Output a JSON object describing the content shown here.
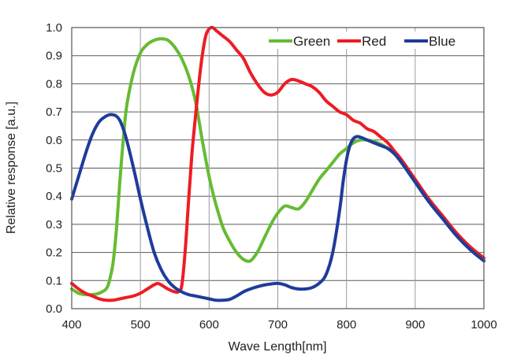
{
  "chart_data": {
    "type": "line",
    "title": "",
    "xlabel": "Wave Length[nm]",
    "ylabel": "Relative response [a.u.]",
    "xlim": [
      400,
      1000
    ],
    "ylim": [
      0,
      1.0
    ],
    "xticks": [
      "400",
      "500",
      "600",
      "700",
      "800",
      "900",
      "1000"
    ],
    "yticks": [
      "0.0",
      "0.1",
      "0.2",
      "0.3",
      "0.4",
      "0.5",
      "0.6",
      "0.7",
      "0.8",
      "0.9",
      "1.0"
    ],
    "grid": true,
    "legend_position": "top-right",
    "series": [
      {
        "name": "Green",
        "color": "#66bb33",
        "x": [
          400,
          410,
          420,
          430,
          440,
          450,
          455,
          460,
          465,
          470,
          475,
          480,
          490,
          500,
          510,
          520,
          530,
          540,
          550,
          560,
          570,
          580,
          590,
          600,
          610,
          620,
          630,
          640,
          650,
          660,
          670,
          680,
          690,
          700,
          710,
          720,
          730,
          740,
          750,
          760,
          770,
          780,
          790,
          800,
          810,
          820,
          830,
          840,
          850,
          860,
          870,
          880,
          900,
          920,
          940,
          960,
          980,
          1000
        ],
        "y": [
          0.07,
          0.055,
          0.05,
          0.05,
          0.055,
          0.07,
          0.1,
          0.16,
          0.28,
          0.45,
          0.6,
          0.72,
          0.84,
          0.91,
          0.94,
          0.955,
          0.96,
          0.955,
          0.93,
          0.89,
          0.83,
          0.74,
          0.6,
          0.47,
          0.37,
          0.29,
          0.24,
          0.2,
          0.175,
          0.17,
          0.2,
          0.25,
          0.3,
          0.34,
          0.365,
          0.36,
          0.355,
          0.38,
          0.42,
          0.46,
          0.49,
          0.52,
          0.55,
          0.57,
          0.59,
          0.6,
          0.6,
          0.595,
          0.585,
          0.57,
          0.55,
          0.52,
          0.45,
          0.38,
          0.32,
          0.26,
          0.21,
          0.17
        ]
      },
      {
        "name": "Red",
        "color": "#ee1c24",
        "x": [
          400,
          410,
          420,
          430,
          440,
          450,
          460,
          470,
          480,
          490,
          500,
          510,
          520,
          525,
          530,
          540,
          550,
          555,
          560,
          565,
          570,
          575,
          580,
          585,
          590,
          595,
          600,
          605,
          610,
          620,
          630,
          640,
          650,
          660,
          670,
          680,
          690,
          700,
          710,
          720,
          730,
          740,
          750,
          760,
          770,
          780,
          790,
          800,
          810,
          820,
          830,
          840,
          850,
          860,
          870,
          880,
          900,
          920,
          940,
          960,
          980,
          1000
        ],
        "y": [
          0.09,
          0.07,
          0.055,
          0.045,
          0.035,
          0.03,
          0.03,
          0.035,
          0.04,
          0.045,
          0.055,
          0.07,
          0.085,
          0.09,
          0.085,
          0.07,
          0.06,
          0.06,
          0.08,
          0.2,
          0.38,
          0.55,
          0.68,
          0.8,
          0.9,
          0.97,
          0.995,
          1.0,
          0.99,
          0.97,
          0.95,
          0.92,
          0.89,
          0.84,
          0.8,
          0.77,
          0.76,
          0.77,
          0.8,
          0.815,
          0.81,
          0.8,
          0.79,
          0.77,
          0.74,
          0.72,
          0.7,
          0.69,
          0.67,
          0.66,
          0.64,
          0.63,
          0.61,
          0.59,
          0.56,
          0.53,
          0.46,
          0.39,
          0.33,
          0.27,
          0.22,
          0.18
        ]
      },
      {
        "name": "Blue",
        "color": "#1f3c99",
        "x": [
          400,
          410,
          420,
          430,
          440,
          450,
          455,
          460,
          465,
          470,
          475,
          480,
          490,
          500,
          510,
          520,
          530,
          540,
          550,
          560,
          570,
          580,
          590,
          600,
          610,
          620,
          630,
          640,
          650,
          660,
          670,
          680,
          690,
          700,
          710,
          720,
          730,
          740,
          750,
          760,
          770,
          780,
          790,
          795,
          800,
          805,
          810,
          815,
          820,
          830,
          840,
          850,
          860,
          870,
          880,
          900,
          920,
          940,
          960,
          980,
          1000
        ],
        "y": [
          0.39,
          0.47,
          0.55,
          0.62,
          0.665,
          0.685,
          0.69,
          0.69,
          0.685,
          0.67,
          0.64,
          0.6,
          0.5,
          0.39,
          0.29,
          0.2,
          0.14,
          0.1,
          0.075,
          0.06,
          0.05,
          0.045,
          0.04,
          0.035,
          0.03,
          0.03,
          0.033,
          0.045,
          0.06,
          0.07,
          0.078,
          0.084,
          0.088,
          0.09,
          0.085,
          0.075,
          0.07,
          0.07,
          0.075,
          0.09,
          0.12,
          0.2,
          0.35,
          0.45,
          0.53,
          0.58,
          0.605,
          0.612,
          0.61,
          0.6,
          0.59,
          0.58,
          0.57,
          0.55,
          0.52,
          0.45,
          0.38,
          0.32,
          0.26,
          0.21,
          0.17
        ]
      }
    ]
  }
}
